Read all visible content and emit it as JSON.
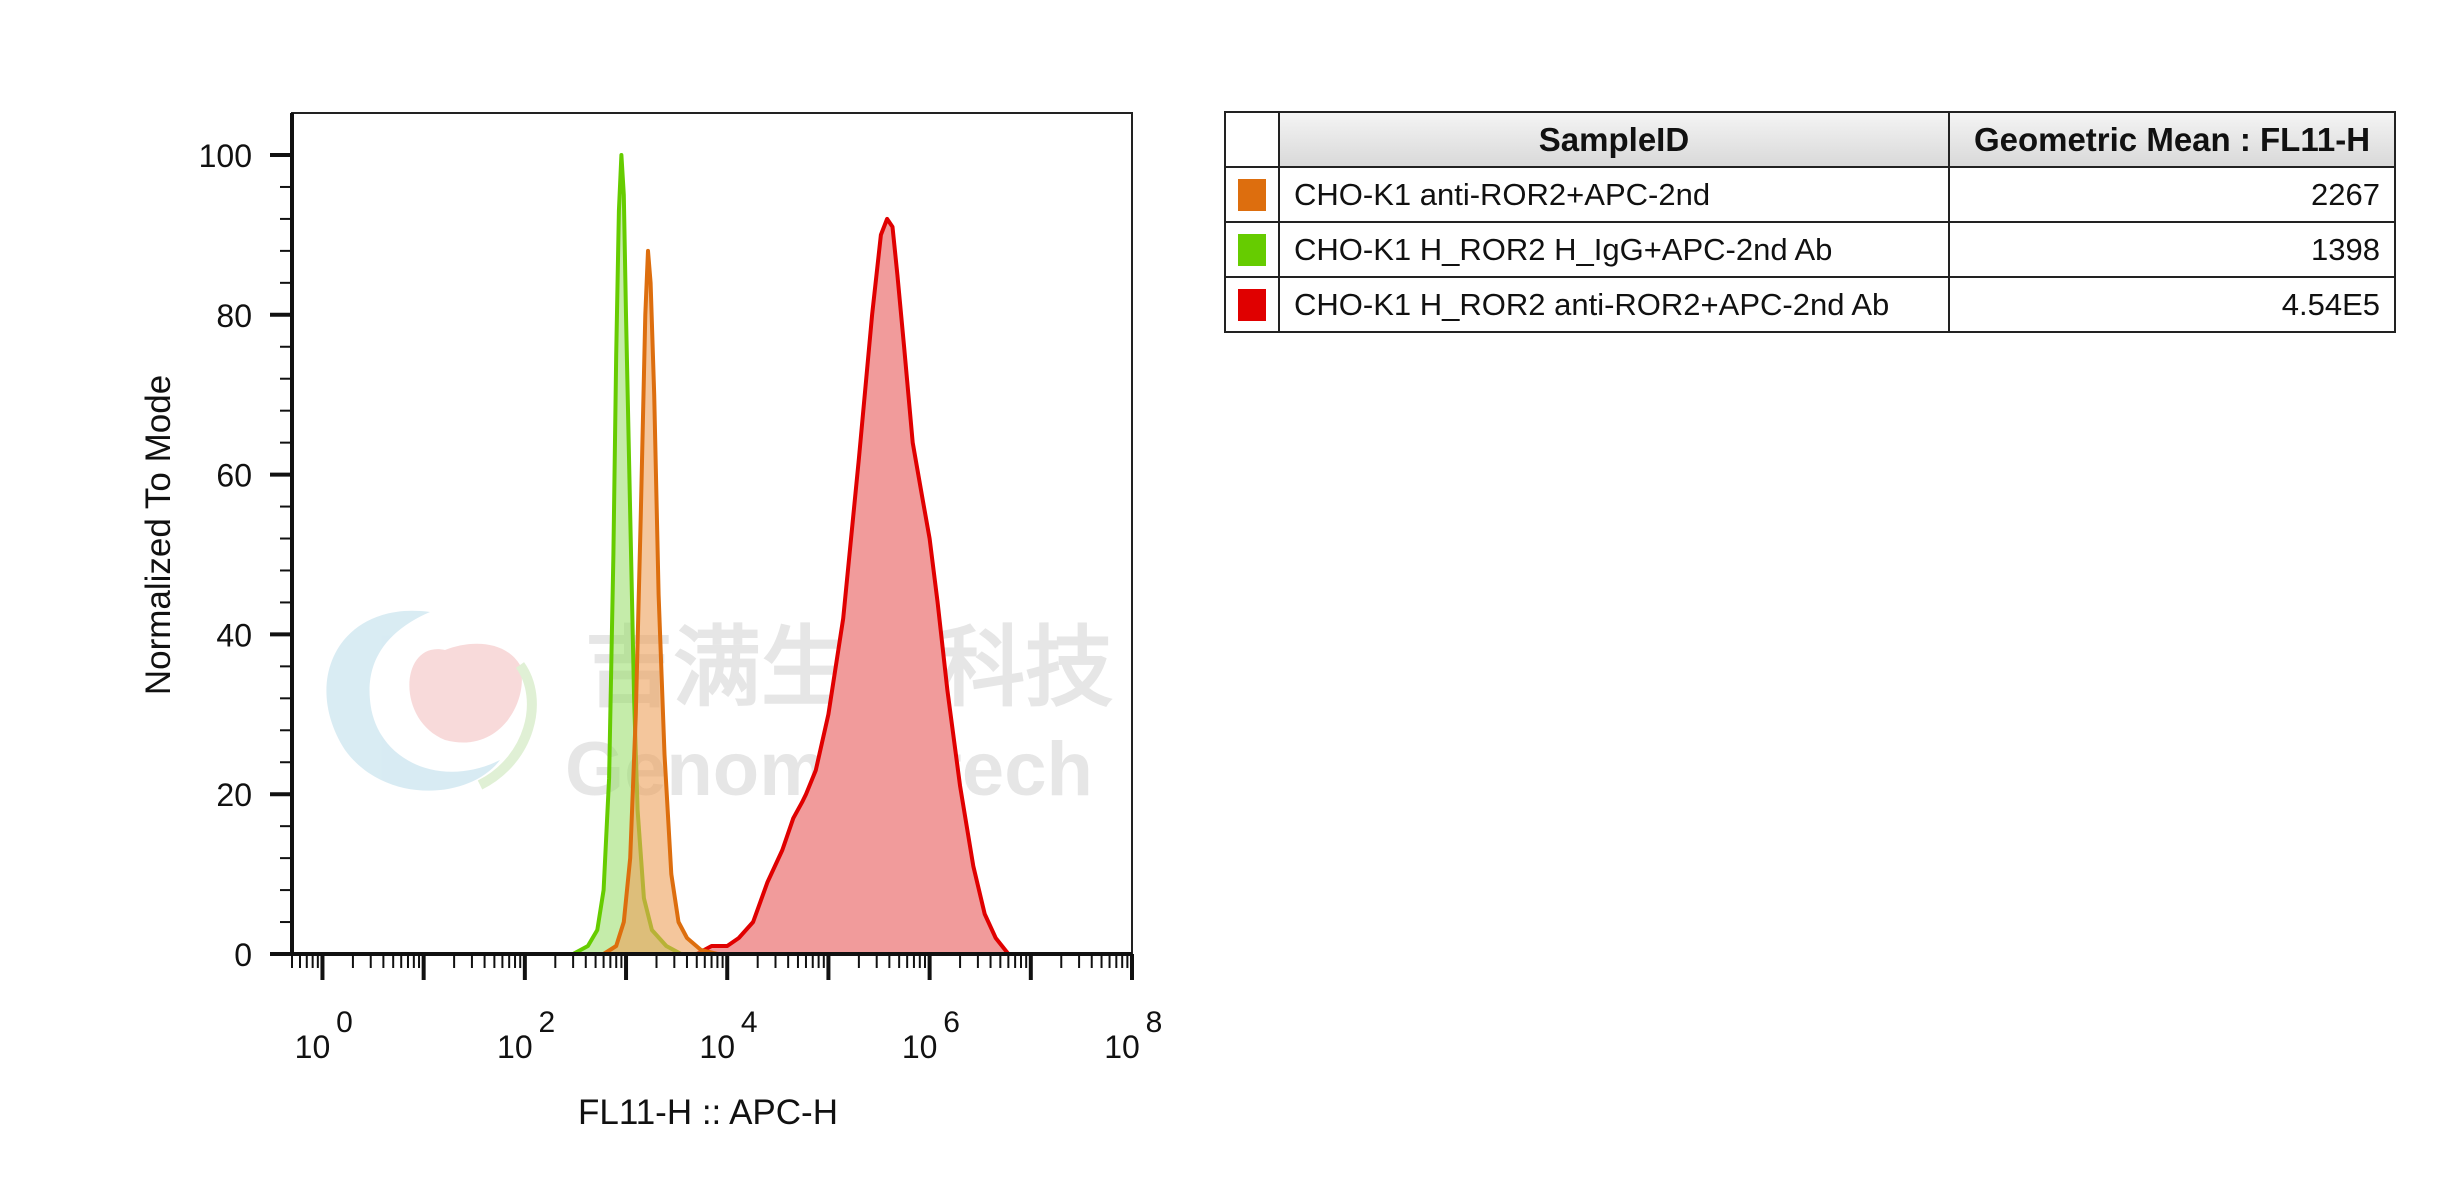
{
  "chart_data": {
    "type": "histogram",
    "xlabel": "FL11-H :: APC-H",
    "ylabel": "Normalized To Mode",
    "x_scale": "log",
    "xlim": [
      0.5,
      100000000
    ],
    "ylim": [
      0,
      105
    ],
    "x_ticks": [
      {
        "base": "10",
        "exp": "0",
        "value": 1
      },
      {
        "base": "10",
        "exp": "2",
        "value": 100
      },
      {
        "base": "10",
        "exp": "4",
        "value": 10000
      },
      {
        "base": "10",
        "exp": "6",
        "value": 1000000
      },
      {
        "base": "10",
        "exp": "8",
        "value": 100000000
      }
    ],
    "y_ticks": [
      "0",
      "20",
      "40",
      "60",
      "80",
      "100"
    ],
    "grid": false,
    "series": [
      {
        "name": "CHO-K1 H_ROR2 anti-ROR2+APC-2nd Ab",
        "color": "#e00000",
        "fill": "#f19b9b",
        "points": [
          [
            0.5,
            0
          ],
          [
            5000,
            0
          ],
          [
            7000,
            1
          ],
          [
            10000,
            1
          ],
          [
            13000,
            2
          ],
          [
            18000,
            4
          ],
          [
            25000,
            9
          ],
          [
            35000,
            13
          ],
          [
            45000,
            17
          ],
          [
            55000,
            19
          ],
          [
            60000,
            20
          ],
          [
            75000,
            23
          ],
          [
            100000,
            30
          ],
          [
            140000,
            42
          ],
          [
            200000,
            62
          ],
          [
            270000,
            80
          ],
          [
            330000,
            90
          ],
          [
            380000,
            92
          ],
          [
            430000,
            91
          ],
          [
            480000,
            85
          ],
          [
            560000,
            76
          ],
          [
            680000,
            64
          ],
          [
            850000,
            57
          ],
          [
            1000000,
            52
          ],
          [
            1200000,
            44
          ],
          [
            1500000,
            33
          ],
          [
            2000000,
            21
          ],
          [
            2700000,
            11
          ],
          [
            3500000,
            5
          ],
          [
            4500000,
            2
          ],
          [
            6000000,
            0
          ],
          [
            100000000,
            0
          ]
        ]
      },
      {
        "name": "CHO-K1 H_ROR2 H_IgG+APC-2nd Ab",
        "color": "#66cc00",
        "fill": "rgba(150,220,100,0.55)",
        "points": [
          [
            0.5,
            0
          ],
          [
            300,
            0
          ],
          [
            420,
            1
          ],
          [
            520,
            3
          ],
          [
            600,
            8
          ],
          [
            680,
            22
          ],
          [
            750,
            50
          ],
          [
            800,
            75
          ],
          [
            850,
            93
          ],
          [
            900,
            100
          ],
          [
            950,
            95
          ],
          [
            1000,
            80
          ],
          [
            1100,
            55
          ],
          [
            1200,
            32
          ],
          [
            1300,
            18
          ],
          [
            1500,
            7
          ],
          [
            1800,
            3
          ],
          [
            2500,
            1
          ],
          [
            3500,
            0
          ],
          [
            100000000,
            0
          ]
        ]
      },
      {
        "name": "CHO-K1 anti-ROR2+APC-2nd",
        "color": "#dd6e0e",
        "fill": "rgba(236,160,90,0.6)",
        "points": [
          [
            0.5,
            0
          ],
          [
            600,
            0
          ],
          [
            800,
            1
          ],
          [
            950,
            4
          ],
          [
            1100,
            12
          ],
          [
            1250,
            30
          ],
          [
            1400,
            55
          ],
          [
            1550,
            80
          ],
          [
            1650,
            88
          ],
          [
            1750,
            84
          ],
          [
            1900,
            70
          ],
          [
            2100,
            45
          ],
          [
            2400,
            25
          ],
          [
            2800,
            10
          ],
          [
            3300,
            4
          ],
          [
            4000,
            2
          ],
          [
            5500,
            0.5
          ],
          [
            8000,
            0
          ],
          [
            100000000,
            0
          ]
        ]
      }
    ]
  },
  "watermark": {
    "cn": "吉满生物科技",
    "en": "Genomeditech"
  },
  "legend_table": {
    "col_sample": "SampleID",
    "col_metric": "Geometric Mean : FL11-H",
    "rows": [
      {
        "color": "#dd6e0e",
        "sample": "CHO-K1 anti-ROR2+APC-2nd",
        "value": "2267"
      },
      {
        "color": "#66cc00",
        "sample": "CHO-K1 H_ROR2 H_IgG+APC-2nd Ab",
        "value": "1398"
      },
      {
        "color": "#e00000",
        "sample": "CHO-K1 H_ROR2 anti-ROR2+APC-2nd Ab",
        "value": "4.54E5"
      }
    ]
  }
}
